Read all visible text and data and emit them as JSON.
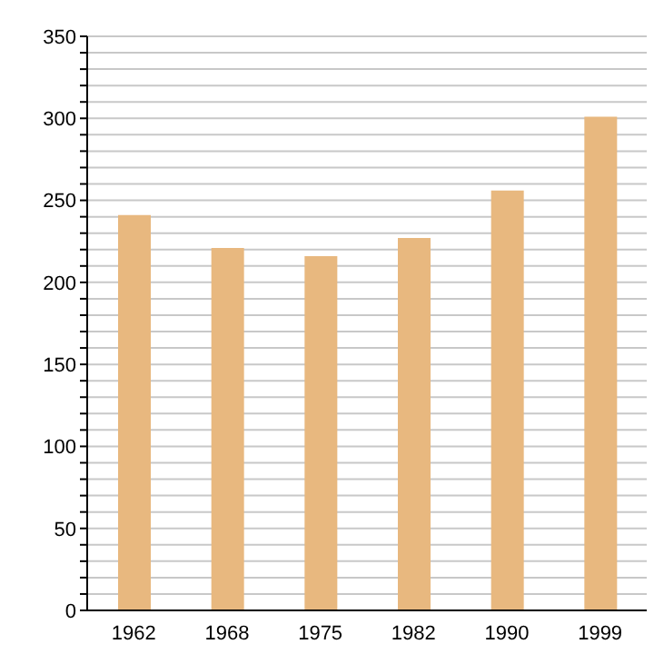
{
  "chart_data": {
    "type": "bar",
    "categories": [
      "1962",
      "1968",
      "1975",
      "1982",
      "1990",
      "1999"
    ],
    "values": [
      241,
      221,
      216,
      227,
      256,
      301
    ],
    "color": "#e8b87f",
    "ylim": [
      0,
      350
    ],
    "yticks": [
      0,
      {
        "value": 10,
        "label": null
      },
      {
        "value": 20,
        "label": null
      },
      {
        "value": 30,
        "label": null
      },
      {
        "value": 40,
        "label": null
      },
      50,
      {
        "value": 60,
        "label": null
      },
      {
        "value": 70,
        "label": null
      },
      {
        "value": 80,
        "label": null
      },
      {
        "value": 90,
        "label": null
      },
      100,
      {
        "value": 110,
        "label": null
      },
      {
        "value": 120,
        "label": null
      },
      {
        "value": 130,
        "label": null
      },
      {
        "value": 140,
        "label": null
      },
      150,
      {
        "value": 160,
        "label": null
      },
      {
        "value": 170,
        "label": null
      },
      {
        "value": 180,
        "label": null
      },
      {
        "value": 190,
        "label": null
      },
      200,
      {
        "value": 210,
        "label": null
      },
      {
        "value": 220,
        "label": null
      },
      {
        "value": 230,
        "label": null
      },
      {
        "value": 240,
        "label": null
      },
      250,
      {
        "value": 260,
        "label": null
      },
      {
        "value": 270,
        "label": null
      },
      {
        "value": 280,
        "label": null
      },
      {
        "value": 290,
        "label": null
      },
      300,
      {
        "value": 310,
        "label": null
      },
      {
        "value": 320,
        "label": null
      },
      {
        "value": 330,
        "label": null
      },
      {
        "value": 340,
        "label": null
      },
      350
    ],
    "grid": "y"
  }
}
